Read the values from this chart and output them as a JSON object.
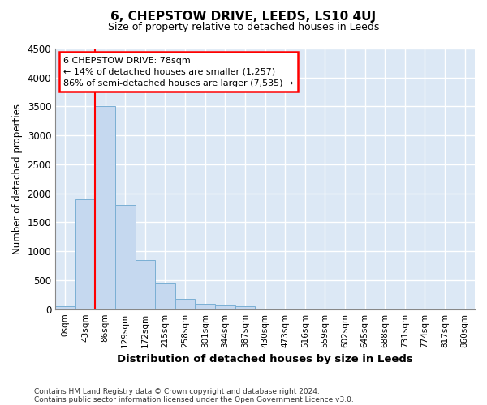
{
  "title": "6, CHEPSTOW DRIVE, LEEDS, LS10 4UJ",
  "subtitle": "Size of property relative to detached houses in Leeds",
  "xlabel": "Distribution of detached houses by size in Leeds",
  "ylabel": "Number of detached properties",
  "bar_color": "#c5d8ef",
  "bar_edge_color": "#7aafd4",
  "background_color": "#dce8f5",
  "grid_color": "#ffffff",
  "categories": [
    "0sqm",
    "43sqm",
    "86sqm",
    "129sqm",
    "172sqm",
    "215sqm",
    "258sqm",
    "301sqm",
    "344sqm",
    "387sqm",
    "430sqm",
    "473sqm",
    "516sqm",
    "559sqm",
    "602sqm",
    "645sqm",
    "688sqm",
    "731sqm",
    "774sqm",
    "817sqm",
    "860sqm"
  ],
  "values": [
    50,
    1900,
    3500,
    1800,
    850,
    450,
    180,
    100,
    60,
    50,
    0,
    0,
    0,
    0,
    0,
    0,
    0,
    0,
    0,
    0,
    0
  ],
  "ylim": [
    0,
    4500
  ],
  "yticks": [
    0,
    500,
    1000,
    1500,
    2000,
    2500,
    3000,
    3500,
    4000,
    4500
  ],
  "red_line_x": 1.5,
  "property_label": "6 CHEPSTOW DRIVE: 78sqm",
  "annotation_line1": "← 14% of detached houses are smaller (1,257)",
  "annotation_line2": "86% of semi-detached houses are larger (7,535) →",
  "footnote1": "Contains HM Land Registry data © Crown copyright and database right 2024.",
  "footnote2": "Contains public sector information licensed under the Open Government Licence v3.0."
}
